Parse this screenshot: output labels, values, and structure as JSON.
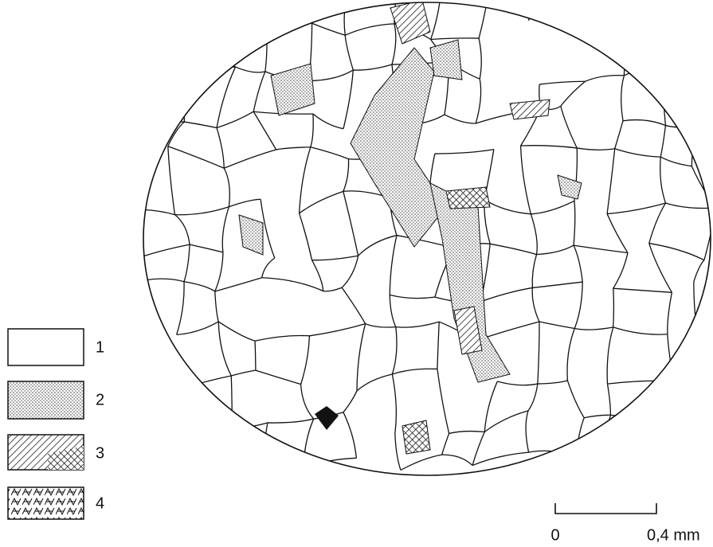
{
  "legend": {
    "items": [
      {
        "label": "1"
      },
      {
        "label": "2"
      },
      {
        "label": "3"
      },
      {
        "label": "4"
      }
    ]
  },
  "scale_bar": {
    "start_label": "0",
    "end_label": "0,4 mm"
  }
}
